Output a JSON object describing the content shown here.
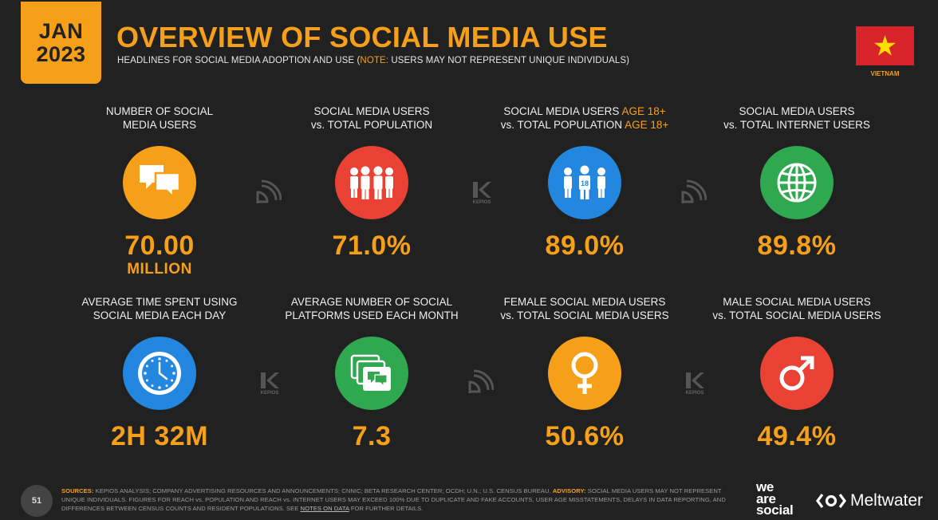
{
  "header": {
    "date_month": "JAN",
    "date_year": "2023",
    "title": "OVERVIEW OF SOCIAL MEDIA USE",
    "subtitle_pre": "HEADLINES FOR SOCIAL MEDIA ADOPTION AND USE (",
    "subtitle_note": "NOTE:",
    "subtitle_post": " USERS MAY NOT REPRESENT UNIQUE INDIVIDUALS)",
    "country": "VIETNAM"
  },
  "colors": {
    "orange": "#f6a01a",
    "red": "#e94235",
    "blue": "#2387e0",
    "green": "#2fa84f",
    "background": "#212121"
  },
  "stats": [
    {
      "label1": "NUMBER OF SOCIAL",
      "label2": "MEDIA USERS",
      "value": "70.00",
      "unit": "MILLION",
      "icon": "speech-bubbles-icon"
    },
    {
      "label1": "SOCIAL MEDIA USERS",
      "label2": "vs. TOTAL POPULATION",
      "value": "71.0%",
      "icon": "people-group-icon"
    },
    {
      "label1a": "SOCIAL MEDIA USERS ",
      "label1b": "AGE 18+",
      "label2a": "vs. TOTAL POPULATION ",
      "label2b": "AGE 18+",
      "value": "89.0%",
      "badge": "18",
      "icon": "adults-group-icon"
    },
    {
      "label1": "SOCIAL MEDIA USERS",
      "label2": "vs. TOTAL INTERNET USERS",
      "value": "89.8%",
      "icon": "globe-icon"
    },
    {
      "label1": "AVERAGE TIME SPENT USING",
      "label2": "SOCIAL MEDIA EACH DAY",
      "value": "2H 32M",
      "icon": "clock-icon"
    },
    {
      "label1": "AVERAGE NUMBER OF SOCIAL",
      "label2": "PLATFORMS USED EACH MONTH",
      "value": "7.3",
      "icon": "stacked-windows-icon"
    },
    {
      "label1": "FEMALE SOCIAL MEDIA USERS",
      "label2": "vs. TOTAL SOCIAL MEDIA USERS",
      "value": "50.6%",
      "icon": "female-icon"
    },
    {
      "label1": "MALE SOCIAL MEDIA USERS",
      "label2": "vs. TOTAL SOCIAL MEDIA USERS",
      "value": "49.4%",
      "icon": "male-icon"
    }
  ],
  "separators": {
    "kepios": "KEPIOS"
  },
  "footer": {
    "page": "51",
    "sources_key": "SOURCES:",
    "sources_text": " KEPIOS ANALYSIS; COMPANY ADVERTISING RESOURCES AND ANNOUNCEMENTS; CNNIC; BETA RESEARCH CENTER; OCDH; U.N.; U.S. CENSUS BUREAU. ",
    "advisory_key": "ADVISORY:",
    "advisory_text": " SOCIAL MEDIA USERS MAY NOT REPRESENT UNIQUE INDIVIDUALS. FIGURES FOR REACH vs. POPULATION AND REACH vs. INTERNET USERS MAY EXCEED 100% DUE TO DUPLICATE AND FAKE ACCOUNTS, USER AGE MISSTATEMENTS, DELAYS IN DATA REPORTING, AND DIFFERENCES BETWEEN CENSUS COUNTS AND RESIDENT POPULATIONS. SEE ",
    "notes_link": "NOTES ON DATA",
    "tail": " FOR FURTHER DETAILS.",
    "brand1_l1": "we",
    "brand1_l2": "are",
    "brand1_l3": "social",
    "brand2": "Meltwater"
  }
}
